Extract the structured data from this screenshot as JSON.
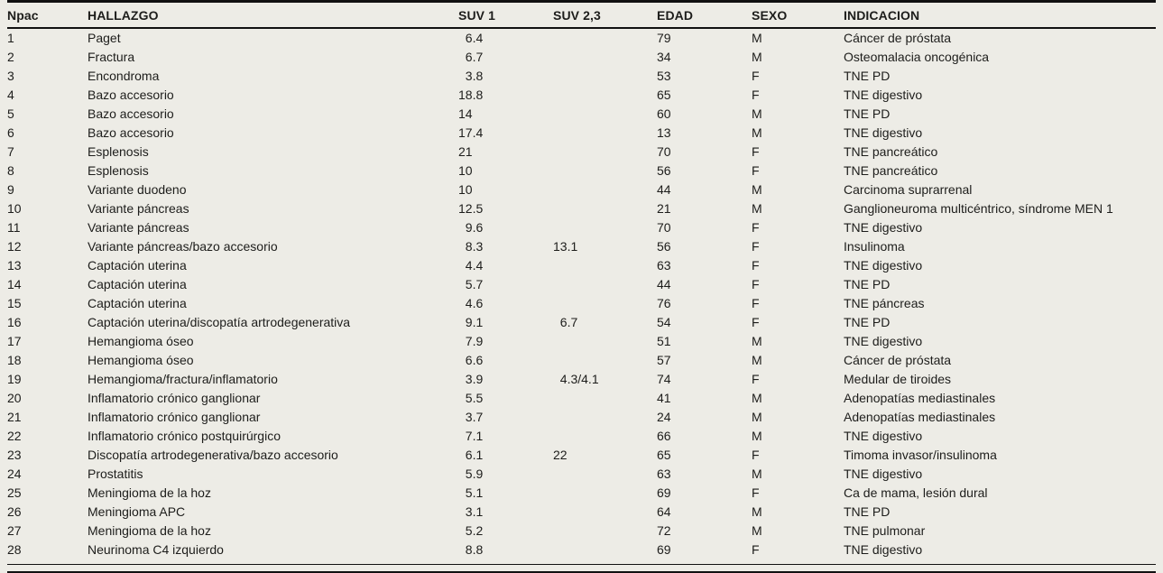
{
  "colors": {
    "background": "#edece6",
    "text": "#1d1d1b",
    "rule": "#111111"
  },
  "table": {
    "columns": [
      {
        "key": "npac",
        "label": "Npac"
      },
      {
        "key": "hallazgo",
        "label": "HALLAZGO"
      },
      {
        "key": "suv1",
        "label": "SUV 1"
      },
      {
        "key": "suv23",
        "label": "SUV 2,3"
      },
      {
        "key": "edad",
        "label": "EDAD"
      },
      {
        "key": "sexo",
        "label": "SEXO"
      },
      {
        "key": "indicacion",
        "label": "INDICACION"
      }
    ],
    "numeric_columns": [
      "suv1",
      "suv23"
    ],
    "rows": [
      {
        "npac": "1",
        "hallazgo": "Paget",
        "suv1": "6.4",
        "suv23": "",
        "edad": "79",
        "sexo": "M",
        "indicacion": "Cáncer de próstata"
      },
      {
        "npac": "2",
        "hallazgo": "Fractura",
        "suv1": "6.7",
        "suv23": "",
        "edad": "34",
        "sexo": "M",
        "indicacion": "Osteomalacia oncogénica"
      },
      {
        "npac": "3",
        "hallazgo": "Encondroma",
        "suv1": "3.8",
        "suv23": "",
        "edad": "53",
        "sexo": "F",
        "indicacion": "TNE PD"
      },
      {
        "npac": "4",
        "hallazgo": "Bazo accesorio",
        "suv1": "18.8",
        "suv23": "",
        "edad": "65",
        "sexo": "F",
        "indicacion": "TNE digestivo"
      },
      {
        "npac": "5",
        "hallazgo": "Bazo accesorio",
        "suv1": "14",
        "suv23": "",
        "edad": "60",
        "sexo": "M",
        "indicacion": "TNE PD"
      },
      {
        "npac": "6",
        "hallazgo": "Bazo accesorio",
        "suv1": "17.4",
        "suv23": "",
        "edad": "13",
        "sexo": "M",
        "indicacion": "TNE digestivo"
      },
      {
        "npac": "7",
        "hallazgo": "Esplenosis",
        "suv1": "21",
        "suv23": "",
        "edad": "70",
        "sexo": "F",
        "indicacion": "TNE pancreático"
      },
      {
        "npac": "8",
        "hallazgo": "Esplenosis",
        "suv1": "10",
        "suv23": "",
        "edad": "56",
        "sexo": "F",
        "indicacion": "TNE pancreático"
      },
      {
        "npac": "9",
        "hallazgo": "Variante duodeno",
        "suv1": "10",
        "suv23": "",
        "edad": "44",
        "sexo": "M",
        "indicacion": "Carcinoma suprarrenal"
      },
      {
        "npac": "10",
        "hallazgo": "Variante páncreas",
        "suv1": "12.5",
        "suv23": "",
        "edad": "21",
        "sexo": "M",
        "indicacion": "Ganglioneuroma multicéntrico, síndrome MEN 1"
      },
      {
        "npac": "11",
        "hallazgo": "Variante páncreas",
        "suv1": "9.6",
        "suv23": "",
        "edad": "70",
        "sexo": "F",
        "indicacion": "TNE digestivo"
      },
      {
        "npac": "12",
        "hallazgo": "Variante páncreas/bazo accesorio",
        "suv1": "8.3",
        "suv23": "13.1",
        "edad": "56",
        "sexo": "F",
        "indicacion": "Insulinoma"
      },
      {
        "npac": "13",
        "hallazgo": "Captación uterina",
        "suv1": "4.4",
        "suv23": "",
        "edad": "63",
        "sexo": "F",
        "indicacion": "TNE digestivo"
      },
      {
        "npac": "14",
        "hallazgo": "Captación uterina",
        "suv1": "5.7",
        "suv23": "",
        "edad": "44",
        "sexo": "F",
        "indicacion": "TNE PD"
      },
      {
        "npac": "15",
        "hallazgo": "Captación uterina",
        "suv1": "4.6",
        "suv23": "",
        "edad": "76",
        "sexo": "F",
        "indicacion": "TNE páncreas"
      },
      {
        "npac": "16",
        "hallazgo": "Captación uterina/discopatía artrodegenerativa",
        "suv1": "9.1",
        "suv23": "6.7",
        "edad": "54",
        "sexo": "F",
        "indicacion": "TNE PD"
      },
      {
        "npac": "17",
        "hallazgo": "Hemangioma óseo",
        "suv1": "7.9",
        "suv23": "",
        "edad": "51",
        "sexo": "M",
        "indicacion": "TNE digestivo"
      },
      {
        "npac": "18",
        "hallazgo": "Hemangioma óseo",
        "suv1": "6.6",
        "suv23": "",
        "edad": "57",
        "sexo": "M",
        "indicacion": "Cáncer de próstata"
      },
      {
        "npac": "19",
        "hallazgo": "Hemangioma/fractura/inflamatorio",
        "suv1": "3.9",
        "suv23": "4.3/4.1",
        "edad": "74",
        "sexo": "F",
        "indicacion": "Medular de tiroides"
      },
      {
        "npac": "20",
        "hallazgo": "Inflamatorio crónico ganglionar",
        "suv1": "5.5",
        "suv23": "",
        "edad": "41",
        "sexo": "M",
        "indicacion": "Adenopatías mediastinales"
      },
      {
        "npac": "21",
        "hallazgo": "Inflamatorio crónico ganglionar",
        "suv1": "3.7",
        "suv23": "",
        "edad": "24",
        "sexo": "M",
        "indicacion": "Adenopatías mediastinales"
      },
      {
        "npac": "22",
        "hallazgo": "Inflamatorio crónico postquirúrgico",
        "suv1": "7.1",
        "suv23": "",
        "edad": "66",
        "sexo": "M",
        "indicacion": "TNE digestivo"
      },
      {
        "npac": "23",
        "hallazgo": "Discopatía artrodegenerativa/bazo accesorio",
        "suv1": "6.1",
        "suv23": "22",
        "edad": "65",
        "sexo": "F",
        "indicacion": "Timoma invasor/insulinoma"
      },
      {
        "npac": "24",
        "hallazgo": "Prostatitis",
        "suv1": "5.9",
        "suv23": "",
        "edad": "63",
        "sexo": "M",
        "indicacion": "TNE digestivo"
      },
      {
        "npac": "25",
        "hallazgo": "Meningioma de la hoz",
        "suv1": "5.1",
        "suv23": "",
        "edad": "69",
        "sexo": "F",
        "indicacion": "Ca de mama, lesión dural"
      },
      {
        "npac": "26",
        "hallazgo": "Meningioma APC",
        "suv1": "3.1",
        "suv23": "",
        "edad": "64",
        "sexo": "M",
        "indicacion": "TNE PD"
      },
      {
        "npac": "27",
        "hallazgo": "Meningioma de la hoz",
        "suv1": "5.2",
        "suv23": "",
        "edad": "72",
        "sexo": "M",
        "indicacion": "TNE pulmonar"
      },
      {
        "npac": "28",
        "hallazgo": "Neurinoma C4 izquierdo",
        "suv1": "8.8",
        "suv23": "",
        "edad": "69",
        "sexo": "F",
        "indicacion": "TNE digestivo"
      }
    ]
  }
}
